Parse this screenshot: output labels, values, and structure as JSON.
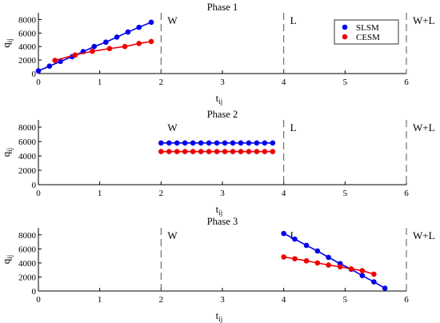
{
  "chart_data": [
    {
      "type": "scatter",
      "title": "Phase 1",
      "xlabel": "t",
      "xlabel_sub": "ij",
      "ylabel": "q",
      "ylabel_sub": "ij",
      "xlim": [
        0,
        6
      ],
      "ylim": [
        0,
        9000
      ],
      "x_ticks": [
        0,
        1,
        2,
        3,
        4,
        5,
        6
      ],
      "y_ticks": [
        0,
        2000,
        4000,
        6000,
        8000
      ],
      "region_lines": [
        2,
        4,
        6
      ],
      "region_labels": [
        {
          "text": "W",
          "x": 2
        },
        {
          "text": "L",
          "x": 4
        },
        {
          "text": "W+L",
          "x": 6
        }
      ],
      "legend": [
        "SLSM",
        "CESM"
      ],
      "legend_position": "top-right",
      "colors": {
        "SLSM": "#0000ee",
        "CESM": "#ee0000"
      },
      "series": [
        {
          "name": "SLSM",
          "points": [
            [
              0,
              400
            ],
            [
              0.18,
              1100
            ],
            [
              0.36,
              1800
            ],
            [
              0.55,
              2500
            ],
            [
              0.73,
              3250
            ],
            [
              0.91,
              4000
            ],
            [
              1.1,
              4650
            ],
            [
              1.28,
              5400
            ],
            [
              1.46,
              6150
            ],
            [
              1.64,
              6850
            ],
            [
              1.84,
              7600
            ]
          ]
        },
        {
          "name": "CESM",
          "points": [
            [
              0.27,
              1950
            ],
            [
              0.6,
              2750
            ],
            [
              0.88,
              3300
            ],
            [
              1.16,
              3700
            ],
            [
              1.41,
              4000
            ],
            [
              1.64,
              4450
            ],
            [
              1.84,
              4750
            ]
          ]
        }
      ]
    },
    {
      "type": "scatter",
      "title": "Phase 2",
      "xlabel": "t",
      "xlabel_sub": "ij",
      "ylabel": "q",
      "ylabel_sub": "ij",
      "xlim": [
        0,
        6
      ],
      "ylim": [
        0,
        9000
      ],
      "x_ticks": [
        0,
        1,
        2,
        3,
        4,
        5,
        6
      ],
      "y_ticks": [
        0,
        2000,
        4000,
        6000,
        8000
      ],
      "region_lines": [
        4,
        6
      ],
      "region_labels": [
        {
          "text": "W",
          "x": 2
        },
        {
          "text": "L",
          "x": 4
        },
        {
          "text": "W+L",
          "x": 6
        }
      ],
      "colors": {
        "SLSM": "#0000ee",
        "CESM": "#ee0000"
      },
      "series": [
        {
          "name": "SLSM",
          "points": [
            [
              2.0,
              5800
            ],
            [
              2.13,
              5800
            ],
            [
              2.26,
              5800
            ],
            [
              2.39,
              5800
            ],
            [
              2.52,
              5800
            ],
            [
              2.65,
              5800
            ],
            [
              2.78,
              5800
            ],
            [
              2.91,
              5800
            ],
            [
              3.04,
              5800
            ],
            [
              3.17,
              5800
            ],
            [
              3.3,
              5800
            ],
            [
              3.43,
              5800
            ],
            [
              3.56,
              5800
            ],
            [
              3.69,
              5800
            ],
            [
              3.82,
              5800
            ]
          ]
        },
        {
          "name": "CESM",
          "points": [
            [
              2.0,
              4600
            ],
            [
              2.13,
              4600
            ],
            [
              2.26,
              4600
            ],
            [
              2.39,
              4600
            ],
            [
              2.52,
              4600
            ],
            [
              2.65,
              4600
            ],
            [
              2.78,
              4600
            ],
            [
              2.91,
              4600
            ],
            [
              3.04,
              4600
            ],
            [
              3.17,
              4600
            ],
            [
              3.3,
              4600
            ],
            [
              3.43,
              4600
            ],
            [
              3.56,
              4600
            ],
            [
              3.69,
              4600
            ],
            [
              3.82,
              4600
            ]
          ]
        }
      ]
    },
    {
      "type": "scatter",
      "title": "Phase 3",
      "xlabel": "t",
      "xlabel_sub": "ij",
      "ylabel": "q",
      "ylabel_sub": "ij",
      "xlim": [
        0,
        6
      ],
      "ylim": [
        0,
        9000
      ],
      "x_ticks": [
        0,
        1,
        2,
        3,
        4,
        5,
        6
      ],
      "y_ticks": [
        0,
        2000,
        4000,
        6000,
        8000
      ],
      "region_lines": [
        2,
        6
      ],
      "region_labels": [
        {
          "text": "W",
          "x": 2
        },
        {
          "text": "L",
          "x": 4
        },
        {
          "text": "W+L",
          "x": 6
        }
      ],
      "colors": {
        "SLSM": "#0000ee",
        "CESM": "#ee0000"
      },
      "series": [
        {
          "name": "SLSM",
          "points": [
            [
              4.0,
              8200
            ],
            [
              4.18,
              7400
            ],
            [
              4.37,
              6500
            ],
            [
              4.55,
              5700
            ],
            [
              4.73,
              4800
            ],
            [
              4.92,
              3900
            ],
            [
              5.1,
              3100
            ],
            [
              5.28,
              2200
            ],
            [
              5.47,
              1300
            ],
            [
              5.65,
              400
            ]
          ]
        },
        {
          "name": "CESM",
          "points": [
            [
              4.0,
              4850
            ],
            [
              4.18,
              4600
            ],
            [
              4.37,
              4300
            ],
            [
              4.55,
              4000
            ],
            [
              4.73,
              3700
            ],
            [
              4.92,
              3450
            ],
            [
              5.1,
              3150
            ],
            [
              5.28,
              2900
            ],
            [
              5.47,
              2400
            ]
          ]
        }
      ]
    }
  ]
}
